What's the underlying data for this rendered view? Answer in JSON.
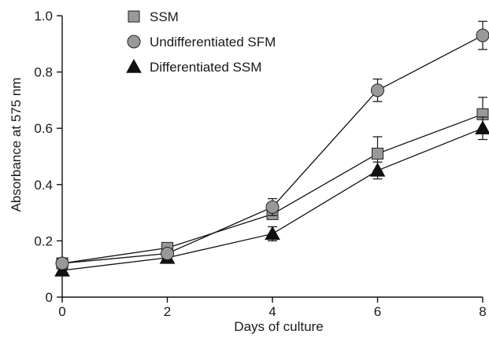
{
  "chart_data": {
    "type": "line",
    "title": "",
    "xlabel": "Days of culture",
    "ylabel": "Absorbance at 575 nm",
    "xlim": [
      0,
      8
    ],
    "ylim": [
      0,
      1.0
    ],
    "x_ticks": [
      0,
      2,
      4,
      6,
      8
    ],
    "x_tick_labels": [
      "0",
      "2",
      "4",
      "6",
      "8"
    ],
    "y_ticks": [
      0,
      0.2,
      0.4,
      0.6,
      0.8,
      1.0
    ],
    "y_tick_labels": [
      "0",
      "0.2",
      "0.4",
      "0.6",
      "0.8",
      "1.0"
    ],
    "grid": false,
    "legend_position": "top-left",
    "series": [
      {
        "name": "SSM",
        "marker": "square",
        "color": "#999999",
        "x": [
          0,
          2,
          4,
          6,
          8
        ],
        "y": [
          0.12,
          0.175,
          0.295,
          0.51,
          0.65
        ],
        "err": [
          0.01,
          0.01,
          0.015,
          0.06,
          0.06
        ]
      },
      {
        "name": "Undifferentiated SFM",
        "marker": "circle",
        "color": "#999999",
        "x": [
          0,
          2,
          4,
          6,
          8
        ],
        "y": [
          0.12,
          0.155,
          0.32,
          0.735,
          0.93
        ],
        "err": [
          0.01,
          0.01,
          0.03,
          0.04,
          0.05
        ]
      },
      {
        "name": "Differentiated SSM",
        "marker": "triangle",
        "color": "#111111",
        "x": [
          0,
          2,
          4,
          6,
          8
        ],
        "y": [
          0.095,
          0.14,
          0.225,
          0.45,
          0.6
        ],
        "err": [
          0.01,
          0.01,
          0.025,
          0.03,
          0.04
        ]
      }
    ]
  }
}
